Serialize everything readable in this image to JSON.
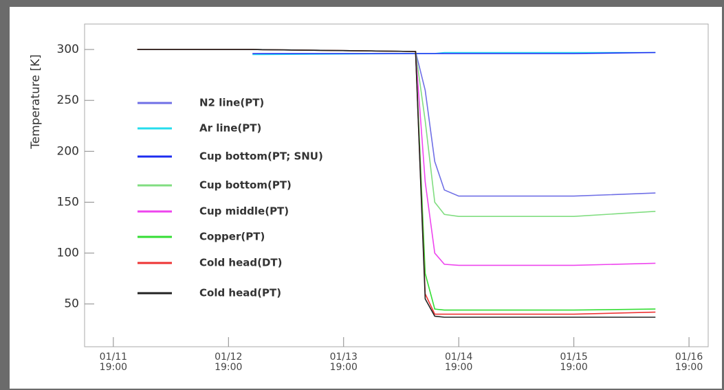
{
  "chart_data": {
    "type": "line",
    "ylabel": "Temperature [K]",
    "x": [
      "01/12 00:00",
      "01/13 00:00",
      "01/14 10:00",
      "01/14 12:00",
      "01/14 14:00",
      "01/14 16:00",
      "01/14 19:00",
      "01/15 19:00",
      "01/16 12:00"
    ],
    "xlim": [
      "01/11 13:00",
      "01/16 23:00"
    ],
    "xticks": [
      "01/11 19:00",
      "01/12 19:00",
      "01/13 19:00",
      "01/14 19:00",
      "01/15 19:00",
      "01/16 19:00"
    ],
    "ylim": [
      8,
      325
    ],
    "yticks": [
      50,
      100,
      150,
      200,
      250,
      300
    ],
    "legend": "left",
    "series": [
      {
        "name": "N2 line(PT)",
        "color": "#6f6fe6",
        "values": [
          300,
          300,
          298,
          260,
          190,
          162,
          156,
          156,
          159
        ]
      },
      {
        "name": "Ar line(PT)",
        "color": "#25dced",
        "values": [
          null,
          295,
          296,
          296,
          296,
          297,
          297,
          297,
          297
        ]
      },
      {
        "name": "Cup bottom(PT; SNU)",
        "color": "#1c2cf0",
        "values": [
          null,
          296,
          296,
          296,
          296,
          296,
          296,
          296,
          297
        ]
      },
      {
        "name": "Cup bottom(PT)",
        "color": "#80dd80",
        "values": [
          300,
          300,
          298,
          230,
          150,
          138,
          136,
          136,
          141
        ]
      },
      {
        "name": "Cup middle(PT)",
        "color": "#ee44ee",
        "values": [
          300,
          300,
          298,
          170,
          100,
          89,
          88,
          88,
          90
        ]
      },
      {
        "name": "Copper(PT)",
        "color": "#33dd33",
        "values": [
          300,
          300,
          298,
          80,
          45,
          44,
          44,
          44,
          45
        ]
      },
      {
        "name": "Cold head(DT)",
        "color": "#ee3333",
        "values": [
          300,
          300,
          298,
          60,
          40,
          40,
          40,
          40,
          42
        ]
      },
      {
        "name": "Cold head(PT)",
        "color": "#222222",
        "values": [
          300,
          300,
          298,
          55,
          38,
          37,
          37,
          37,
          37
        ]
      }
    ]
  }
}
